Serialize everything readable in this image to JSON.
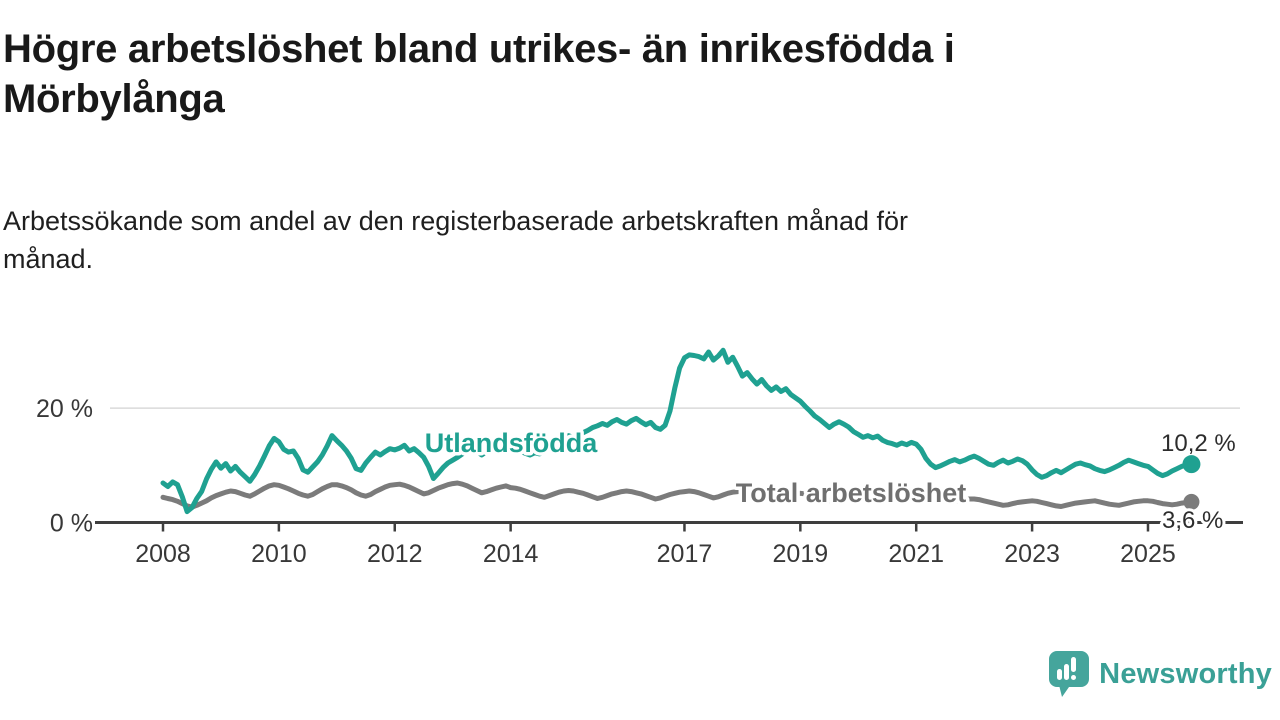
{
  "header": {
    "title_lines": [
      "Högre arbetslöshet bland utrikes- än inrikesfödda i",
      "Mörbylånga"
    ],
    "subtitle_lines": [
      "Arbetssökande som andel av den registerbaserade arbetskraften månad för",
      "månad."
    ]
  },
  "chart_data": {
    "type": "line",
    "title": "Högre arbetslöshet bland utrikes- än inrikesfödda i Mörbylånga",
    "subtitle": "Arbetssökande som andel av den registerbaserade arbetskraften månad för månad.",
    "grid": "horizontal-20-only",
    "legend_position": "inline-labels-on-lines",
    "x_axis": {
      "ticks": [
        2008,
        2010,
        2012,
        2014,
        2017,
        2019,
        2021,
        2023,
        2025
      ],
      "range": [
        2008,
        2025.75
      ]
    },
    "y_axis": {
      "tick_labels": [
        {
          "value": 0,
          "label": "0 %"
        },
        {
          "value": 20,
          "label": "20 %"
        }
      ],
      "range": [
        0,
        31
      ],
      "unit": "%"
    },
    "start_year": 2008,
    "points_per_year": 12,
    "series": [
      {
        "name": "Total arbetslöshet",
        "color": "#7b7b7b",
        "label_color": "#6f6f6f",
        "end_label": "3,6 %",
        "end_value": 3.6,
        "values": [
          4.4,
          4.2,
          4.0,
          3.7,
          3.3,
          2.9,
          2.7,
          3.0,
          3.4,
          3.8,
          4.3,
          4.7,
          5.0,
          5.3,
          5.5,
          5.4,
          5.1,
          4.8,
          4.6,
          5.0,
          5.5,
          6.0,
          6.4,
          6.6,
          6.5,
          6.2,
          5.9,
          5.5,
          5.1,
          4.8,
          4.6,
          4.9,
          5.4,
          5.9,
          6.3,
          6.6,
          6.6,
          6.4,
          6.1,
          5.7,
          5.2,
          4.8,
          4.6,
          4.9,
          5.4,
          5.8,
          6.2,
          6.5,
          6.6,
          6.7,
          6.5,
          6.2,
          5.8,
          5.4,
          5.0,
          5.2,
          5.6,
          6.0,
          6.3,
          6.6,
          6.8,
          6.9,
          6.7,
          6.4,
          6.0,
          5.6,
          5.2,
          5.4,
          5.7,
          6.0,
          6.2,
          6.4,
          6.1,
          6.0,
          5.8,
          5.5,
          5.2,
          4.9,
          4.6,
          4.4,
          4.7,
          5.0,
          5.3,
          5.5,
          5.6,
          5.5,
          5.3,
          5.1,
          4.8,
          4.5,
          4.2,
          4.4,
          4.7,
          5.0,
          5.2,
          5.4,
          5.5,
          5.4,
          5.2,
          5.0,
          4.7,
          4.4,
          4.1,
          4.3,
          4.6,
          4.9,
          5.1,
          5.3,
          5.4,
          5.5,
          5.4,
          5.2,
          4.9,
          4.6,
          4.3,
          4.5,
          4.8,
          5.1,
          5.3,
          5.4,
          5.5,
          5.4,
          5.2,
          5.0,
          4.7,
          4.4,
          4.1,
          3.9,
          4.2,
          4.5,
          4.8,
          5.0,
          5.1,
          5.0,
          4.8,
          4.6,
          4.3,
          4.0,
          3.8,
          4.0,
          4.3,
          4.6,
          4.8,
          5.0,
          5.1,
          5.2,
          5.4,
          5.6,
          5.5,
          5.3,
          5.0,
          4.8,
          4.9,
          5.0,
          5.1,
          5.2,
          5.1,
          4.9,
          4.7,
          4.4,
          4.1,
          3.9,
          3.7,
          3.6,
          3.7,
          3.9,
          4.0,
          4.1,
          4.1,
          4.0,
          3.8,
          3.6,
          3.4,
          3.2,
          3.0,
          3.1,
          3.3,
          3.5,
          3.6,
          3.7,
          3.8,
          3.7,
          3.5,
          3.3,
          3.1,
          2.9,
          2.8,
          3.0,
          3.2,
          3.4,
          3.5,
          3.6,
          3.7,
          3.8,
          3.6,
          3.4,
          3.2,
          3.1,
          3.0,
          3.2,
          3.4,
          3.6,
          3.7,
          3.8,
          3.8,
          3.7,
          3.5,
          3.3,
          3.2,
          3.1,
          3.2,
          3.4,
          3.5,
          3.6
        ]
      },
      {
        "name": "Utlandsfödda",
        "color": "#1fa191",
        "label_color": "#1fa191",
        "end_label": "10,2 %",
        "end_value": 10.2,
        "values": [
          6.9,
          6.3,
          7.1,
          6.6,
          4.5,
          1.9,
          2.6,
          4.2,
          5.4,
          7.6,
          9.3,
          10.6,
          9.5,
          10.3,
          9.0,
          9.8,
          8.8,
          8.0,
          7.2,
          8.4,
          9.9,
          11.6,
          13.4,
          14.7,
          14.1,
          12.8,
          12.3,
          12.5,
          11.2,
          9.2,
          8.8,
          9.7,
          10.6,
          11.8,
          13.4,
          15.2,
          14.3,
          13.5,
          12.5,
          11.2,
          9.4,
          9.1,
          10.4,
          11.4,
          12.3,
          11.8,
          12.4,
          12.9,
          12.7,
          13.0,
          13.5,
          12.5,
          12.9,
          12.2,
          11.4,
          9.8,
          7.7,
          8.6,
          9.6,
          10.4,
          10.9,
          11.4,
          12.0,
          12.5,
          12.9,
          12.4,
          11.8,
          12.4,
          13.0,
          13.5,
          13.0,
          12.6,
          12.4,
          12.8,
          12.5,
          12.1,
          11.8,
          12.2,
          12.0,
          12.4,
          12.9,
          13.4,
          14.1,
          14.7,
          15.2,
          14.8,
          15.3,
          15.7,
          16.1,
          16.6,
          16.9,
          17.3,
          17.0,
          17.6,
          18.0,
          17.5,
          17.2,
          17.8,
          18.2,
          17.6,
          17.1,
          17.5,
          16.6,
          16.3,
          17.0,
          19.5,
          23.5,
          27.0,
          28.8,
          29.3,
          29.2,
          29.0,
          28.6,
          29.8,
          28.4,
          29.1,
          30.1,
          28.0,
          28.9,
          27.3,
          25.6,
          26.2,
          25.1,
          24.2,
          25.0,
          23.9,
          23.1,
          23.7,
          22.9,
          23.4,
          22.4,
          21.8,
          21.2,
          20.3,
          19.5,
          18.6,
          18.0,
          17.3,
          16.6,
          17.2,
          17.6,
          17.2,
          16.7,
          15.9,
          15.4,
          14.9,
          15.2,
          14.8,
          15.1,
          14.4,
          14.0,
          13.8,
          13.5,
          13.9,
          13.6,
          14.0,
          13.7,
          12.8,
          11.2,
          10.2,
          9.6,
          9.9,
          10.3,
          10.7,
          11.0,
          10.6,
          10.9,
          11.3,
          11.6,
          11.2,
          10.7,
          10.2,
          10.0,
          10.5,
          10.9,
          10.4,
          10.7,
          11.1,
          10.8,
          10.2,
          9.2,
          8.4,
          7.9,
          8.2,
          8.7,
          9.1,
          8.7,
          9.2,
          9.7,
          10.2,
          10.4,
          10.1,
          9.9,
          9.4,
          9.1,
          8.9,
          9.2,
          9.6,
          10.0,
          10.5,
          10.9,
          10.6,
          10.3,
          10.0,
          9.8,
          9.2,
          8.6,
          8.2,
          8.5,
          9.0,
          9.4,
          9.8,
          10.1,
          10.2
        ]
      }
    ]
  },
  "colors": {
    "background": "#ffffff",
    "axis": "#3e3e3e",
    "gridline": "#d9d9d9",
    "tick_label": "#383838",
    "end_label": "#2d2d2d",
    "series_teal": "#1fa191",
    "series_gray": "#7b7b7b"
  },
  "branding": {
    "logo_text": "Newsworthy",
    "logo_icon": "speech-bubble-bar-chart-icon",
    "icon_color": "#45a59c",
    "text_color": "#3aa096"
  }
}
